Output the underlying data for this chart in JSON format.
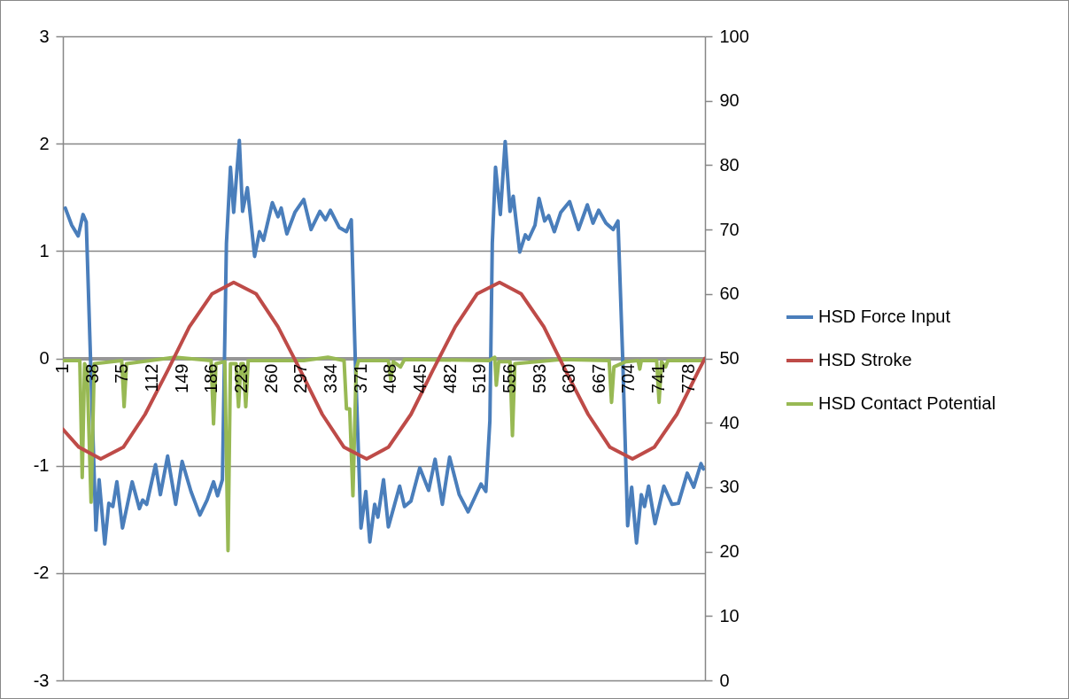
{
  "chart_data": {
    "type": "line",
    "xlim": [
      1,
      798
    ],
    "xticks": [
      1,
      38,
      75,
      112,
      149,
      186,
      223,
      260,
      297,
      334,
      371,
      408,
      445,
      482,
      519,
      556,
      593,
      630,
      667,
      704,
      741,
      778
    ],
    "ylim": [
      -3,
      3
    ],
    "yticks": [
      -3,
      -2,
      -1,
      0,
      1,
      2,
      3
    ],
    "y2lim": [
      0,
      100
    ],
    "y2ticks": [
      0,
      10,
      20,
      30,
      40,
      50,
      60,
      70,
      80,
      90,
      100
    ],
    "grid": "y",
    "legend": "right",
    "series": [
      {
        "name": "HSD Force Input",
        "color": "#4a7ebb",
        "x": [
          4,
          12,
          20,
          26,
          30,
          36,
          42,
          46,
          53,
          58,
          63,
          68,
          75,
          87,
          96,
          100,
          105,
          116,
          122,
          131,
          141,
          149,
          160,
          171,
          180,
          188,
          193,
          199,
          204,
          209,
          213,
          220,
          224,
          230,
          239,
          245,
          250,
          261,
          268,
          272,
          279,
          289,
          300,
          309,
          320,
          327,
          333,
          344,
          353,
          359,
          364,
          369,
          371,
          377,
          382,
          388,
          392,
          399,
          405,
          419,
          425,
          433,
          444,
          455,
          463,
          472,
          481,
          493,
          504,
          520,
          526,
          531,
          534,
          538,
          544,
          550,
          556,
          560,
          568,
          575,
          579,
          587,
          592,
          599,
          604,
          611,
          619,
          630,
          641,
          652,
          659,
          666,
          675,
          684,
          690,
          696,
          702,
          707,
          713,
          719,
          723,
          728,
          736,
          747,
          757,
          765,
          776,
          784,
          793,
          796
        ],
        "values": [
          1.4,
          1.24,
          1.14,
          1.34,
          1.27,
          -0.17,
          -1.6,
          -1.13,
          -1.73,
          -1.35,
          -1.38,
          -1.15,
          -1.58,
          -1.15,
          -1.4,
          -1.32,
          -1.36,
          -0.99,
          -1.27,
          -0.91,
          -1.36,
          -0.96,
          -1.24,
          -1.46,
          -1.32,
          -1.15,
          -1.28,
          -1.13,
          1.07,
          1.78,
          1.36,
          2.03,
          1.37,
          1.59,
          0.95,
          1.18,
          1.1,
          1.45,
          1.32,
          1.4,
          1.16,
          1.36,
          1.48,
          1.2,
          1.37,
          1.29,
          1.38,
          1.22,
          1.18,
          1.29,
          -0.03,
          -1.13,
          -1.58,
          -1.24,
          -1.71,
          -1.36,
          -1.48,
          -1.13,
          -1.57,
          -1.19,
          -1.38,
          -1.33,
          -1.02,
          -1.23,
          -0.94,
          -1.36,
          -0.92,
          -1.27,
          -1.43,
          -1.17,
          -1.24,
          -0.58,
          1.07,
          1.78,
          1.34,
          2.02,
          1.37,
          1.51,
          0.99,
          1.15,
          1.11,
          1.24,
          1.49,
          1.28,
          1.33,
          1.18,
          1.36,
          1.46,
          1.2,
          1.43,
          1.26,
          1.38,
          1.26,
          1.2,
          1.28,
          -0.03,
          -1.56,
          -1.2,
          -1.72,
          -1.27,
          -1.38,
          -1.19,
          -1.54,
          -1.19,
          -1.36,
          -1.35,
          -1.07,
          -1.2,
          -0.98,
          -1.03
        ]
      },
      {
        "name": "HSD Stroke",
        "color": "#be4b48",
        "axis": "y2",
        "x": [
          1,
          21,
          48,
          76,
          103,
          131,
          158,
          186,
          213,
          241,
          268,
          296,
          323,
          350,
          378,
          405,
          433,
          460,
          488,
          515,
          543,
          570,
          598,
          625,
          653,
          680,
          708,
          735,
          763,
          790,
          798
        ],
        "values": [
          39.0,
          36.2,
          34.4,
          36.2,
          41.3,
          48.1,
          54.9,
          60.0,
          61.8,
          60.0,
          54.9,
          48.1,
          41.3,
          36.2,
          34.4,
          36.2,
          41.3,
          48.1,
          54.9,
          60.0,
          61.8,
          60.0,
          54.9,
          48.1,
          41.3,
          36.2,
          34.4,
          36.2,
          41.3,
          48.1,
          50.0
        ]
      },
      {
        "name": "HSD Contact Potential",
        "color": "#98b954",
        "x": [
          1,
          22,
          25,
          28,
          31,
          36,
          40,
          74,
          77,
          80,
          130,
          140,
          185,
          188,
          191,
          202,
          206,
          209,
          216,
          219,
          222,
          225,
          228,
          231,
          300,
          330,
          350,
          353,
          357,
          361,
          365,
          368,
          405,
          408,
          411,
          420,
          425,
          530,
          537,
          539,
          542,
          556,
          559,
          562,
          620,
          679,
          682,
          685,
          700,
          715,
          717,
          719,
          738,
          741,
          744,
          749,
          752,
          798
        ],
        "values": [
          -0.02,
          -0.02,
          -1.11,
          -0.05,
          -0.1,
          -1.34,
          -0.05,
          -0.02,
          -0.45,
          -0.05,
          0,
          0.01,
          -0.02,
          -0.61,
          -0.05,
          -0.03,
          -1.79,
          -0.05,
          -0.05,
          -0.45,
          -0.05,
          -0.05,
          -0.45,
          -0.02,
          -0.02,
          0.01,
          -0.02,
          -0.47,
          -0.47,
          -1.28,
          -0.1,
          -0.02,
          -0.02,
          -0.2,
          -0.03,
          -0.08,
          -0.01,
          -0.02,
          0.01,
          -0.25,
          -0.03,
          -0.03,
          -0.72,
          -0.05,
          -0.01,
          -0.02,
          -0.41,
          -0.08,
          -0.03,
          -0.02,
          -0.1,
          -0.02,
          -0.02,
          -0.41,
          -0.03,
          -0.08,
          -0.02,
          -0.02
        ]
      }
    ]
  }
}
